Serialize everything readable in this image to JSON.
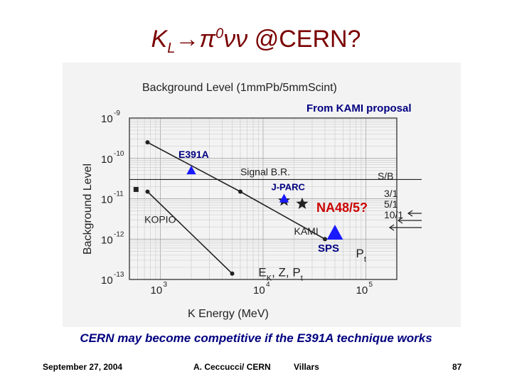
{
  "title": {
    "k": "K",
    "l": "L",
    "arrow": "→",
    "pi": "π",
    "zero": "0",
    "nunu": "νν",
    "rest": "  @CERN?"
  },
  "caption": "CERN may become competitive if the E391A technique works",
  "footer": {
    "date": "September 27, 2004",
    "author": "A. Ceccucci/ CERN",
    "venue": "Villars",
    "page": "87"
  },
  "chart_data": {
    "type": "line",
    "title": "Background Level (1mmPb/5mmScint)",
    "xlabel": "K Energy (MeV)",
    "ylabel": "Background Level",
    "x_scale": "log",
    "y_scale": "log",
    "xlim": [
      500,
      200000
    ],
    "ylim": [
      1e-13,
      1e-09
    ],
    "x_ticks": [
      {
        "value": 1000,
        "label": "10",
        "exp": "3"
      },
      {
        "value": 10000,
        "label": "10",
        "exp": "4"
      },
      {
        "value": 100000,
        "label": "10",
        "exp": "5"
      }
    ],
    "y_ticks": [
      {
        "value": 1e-09,
        "label": "10",
        "exp": "-9"
      },
      {
        "value": 1e-10,
        "label": "10",
        "exp": "-10"
      },
      {
        "value": 1e-11,
        "label": "10",
        "exp": "-11"
      },
      {
        "value": 1e-12,
        "label": "10",
        "exp": "-12"
      },
      {
        "value": 1e-13,
        "label": "10",
        "exp": "-13"
      }
    ],
    "grid": true,
    "series": [
      {
        "points": [
          {
            "x": 750,
            "y": 2.5e-10
          },
          {
            "x": 6000,
            "y": 1.5e-11
          },
          {
            "x": 40000,
            "y": 1e-12
          }
        ]
      },
      {
        "points": [
          {
            "x": 750,
            "y": 1.5e-11
          },
          {
            "x": 5000,
            "y": 1.4e-13
          }
        ]
      }
    ],
    "reference_line": {
      "label": "Signal B.R.",
      "y": 3e-11
    },
    "annotations": [
      {
        "text": "KOPIO",
        "x": 700,
        "y": 2.5e-12
      },
      {
        "text": "KAMI",
        "x": 20000,
        "y": 1.3e-12
      },
      {
        "text": "S/B",
        "x": 130000,
        "y": 3e-11
      },
      {
        "text": "3/1",
        "x": 150000,
        "y": 1.1e-11
      },
      {
        "text": "5/1",
        "x": 150000,
        "y": 6e-12
      },
      {
        "text": "10/1",
        "x": 150000,
        "y": 3.3e-12
      },
      {
        "text": "E",
        "sub": "K",
        "rest": ", Z, P",
        "sub2": "t",
        "x": 9000,
        "y": 1.2e-13
      },
      {
        "text": "P",
        "sub": "t",
        "x": 80000,
        "y": 3.5e-13
      }
    ],
    "markers": [
      {
        "shape": "square",
        "x": 580,
        "y": 1.7e-11
      },
      {
        "shape": "star",
        "x": 24000,
        "y": 7.5e-12
      },
      {
        "shape": "star",
        "x": 16000,
        "y": 9e-12
      }
    ],
    "overlay": {
      "header": "From KAMI proposal",
      "points": [
        {
          "label": "E391A",
          "x": 2000,
          "y": 5e-11
        },
        {
          "label": "J-PARC",
          "x": 16000,
          "y": 1e-11
        },
        {
          "label": "NA48/5?",
          "x": 50000,
          "y": 1.4e-12
        },
        {
          "label": "SPS",
          "x": 50000,
          "y": 1.4e-12
        }
      ]
    }
  }
}
